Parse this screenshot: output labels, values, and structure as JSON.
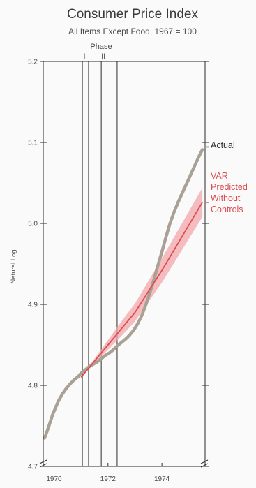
{
  "chart_data": {
    "type": "line",
    "title": "Consumer Price Index",
    "subtitle": "All Items Except Food, 1967 = 100",
    "ylabel": "Natural Log",
    "ylim": [
      4.7,
      5.2
    ],
    "xlim": [
      1969.6,
      1975.6
    ],
    "yticks": [
      "4.7",
      "4.8",
      "4.9",
      "5.0",
      "5.1",
      "5.2"
    ],
    "xticks": [
      "1970",
      "1972",
      "1974"
    ],
    "phase_header": "Phase",
    "phase_lines": [
      {
        "label": "I",
        "x": 1971.05
      },
      {
        "label": "",
        "x": 1971.28
      },
      {
        "label": "II",
        "x": 1971.75
      },
      {
        "label": "",
        "x": 1972.34
      }
    ],
    "colors": {
      "actual": "#a9a196",
      "predicted": "#dd4c4e",
      "band": "#f1a7ab",
      "axis": "#2b2b2b"
    },
    "series": [
      {
        "name": "Actual",
        "x": [
          1969.65,
          1969.75,
          1969.85,
          1969.95,
          1970.05,
          1970.15,
          1970.3,
          1970.45,
          1970.6,
          1970.75,
          1970.9,
          1971.0,
          1971.15,
          1971.3,
          1971.45,
          1971.6,
          1971.75,
          1971.9,
          1972.05,
          1972.2,
          1972.35,
          1972.5,
          1972.65,
          1972.8,
          1972.95,
          1973.1,
          1973.25,
          1973.4,
          1973.55,
          1973.7,
          1973.85,
          1974.0,
          1974.15,
          1974.3,
          1974.45,
          1974.6,
          1974.75,
          1974.9,
          1975.05,
          1975.2,
          1975.35,
          1975.5
        ],
        "values": [
          4.735,
          4.744,
          4.754,
          4.764,
          4.772,
          4.78,
          4.789,
          4.796,
          4.802,
          4.807,
          4.811,
          4.815,
          4.819,
          4.823,
          4.826,
          4.829,
          4.833,
          4.837,
          4.84,
          4.844,
          4.849,
          4.853,
          4.857,
          4.862,
          4.868,
          4.876,
          4.886,
          4.899,
          4.914,
          4.93,
          4.948,
          4.965,
          4.983,
          5.0,
          5.014,
          5.026,
          5.037,
          5.048,
          5.059,
          5.07,
          5.081,
          5.091
        ]
      },
      {
        "name": "VAR Predicted Without Controls",
        "x": [
          1971.0,
          1971.5,
          1972.0,
          1972.5,
          1973.0,
          1973.5,
          1974.0,
          1974.5,
          1975.0,
          1975.5
        ],
        "values": [
          4.81,
          4.83,
          4.85,
          4.87,
          4.89,
          4.916,
          4.942,
          4.97,
          4.998,
          5.026
        ],
        "band": [
          0,
          0.003,
          0.006,
          0.009,
          0.011,
          0.013,
          0.015,
          0.016,
          0.017,
          0.018
        ]
      }
    ],
    "legend": [
      {
        "series": "Actual",
        "lines": [
          "Actual"
        ]
      },
      {
        "series": "VAR Predicted Without Controls",
        "lines": [
          "VAR",
          "Predicted",
          "Without",
          "Controls"
        ]
      }
    ],
    "grid": false
  }
}
